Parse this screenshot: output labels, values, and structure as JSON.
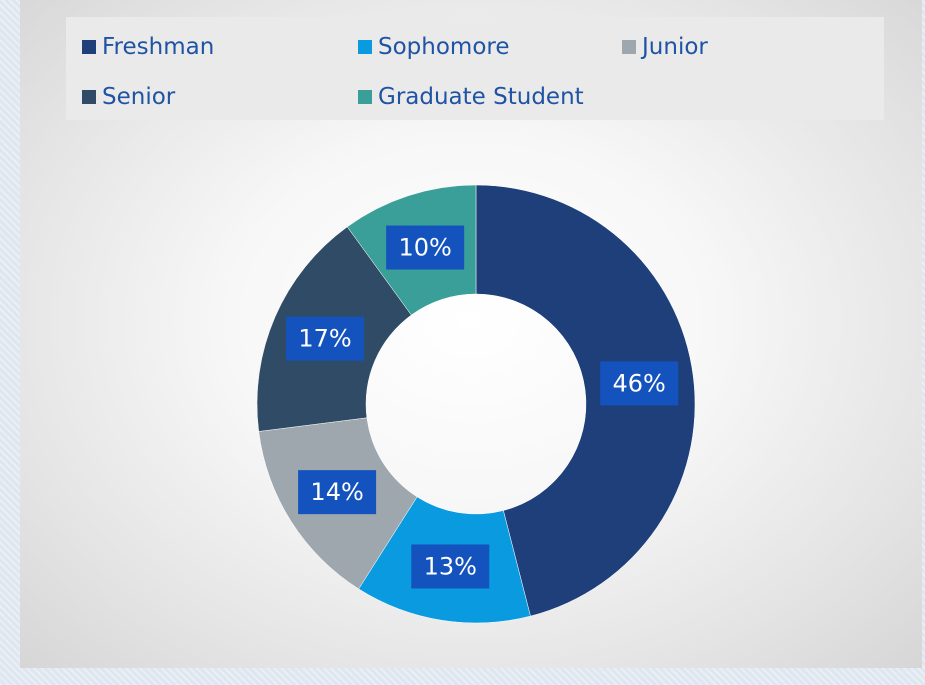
{
  "chart_data": {
    "type": "pie",
    "categories": [
      "Freshman",
      "Sophomore",
      "Junior",
      "Senior",
      "Graduate Student"
    ],
    "values": [
      46,
      13,
      14,
      17,
      10
    ],
    "value_labels": [
      "46%",
      "13%",
      "14%",
      "17%",
      "10%"
    ],
    "colors": [
      "#1e3f7a",
      "#0a9ae0",
      "#9ea6ae",
      "#2f4b66",
      "#3a9f98"
    ],
    "hole": "donut",
    "legend_position": "top",
    "title": ""
  }
}
